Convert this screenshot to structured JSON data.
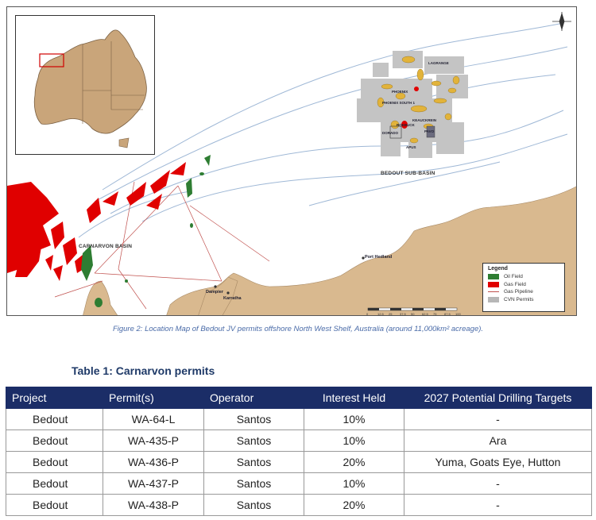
{
  "map": {
    "basin_labels": {
      "bedout": "BEDOUT SUB-BASIN",
      "carnarvon": "CARNARVON BASIN"
    },
    "towns": [
      "Port Hedland",
      "Dampier",
      "Karratha"
    ],
    "field_labels": [
      "LAGRANGE",
      "PHOENIX",
      "PHOENIX SOUTH 1",
      "ROEBUCK",
      "KEAUCKREIN",
      "DORADO",
      "PAVO",
      "APUS"
    ],
    "legend": {
      "title": "Legend",
      "items": [
        {
          "label": "Oil Field",
          "color": "#2e7d32"
        },
        {
          "label": "Gas Field",
          "color": "#e00000"
        },
        {
          "label": "Gas Pipeline",
          "color": "#c0504d"
        },
        {
          "label": "CVN Permits",
          "color": "#b7b7b7"
        }
      ]
    },
    "scale_ticks": [
      "0",
      "12.5",
      "25",
      "37.5",
      "50",
      "62.5",
      "75",
      "87.5",
      "100"
    ],
    "colors": {
      "land": "#d9b98f",
      "permits": "#c4c4c4",
      "oil_field": "#2e7d32",
      "gas_field": "#e00000",
      "pipeline": "#c0504d",
      "bathymetry": "#9fb8d6"
    }
  },
  "caption": "Figure 2: Location Map of Bedout JV permits offshore North West Shelf, Australia (around 11,000km² acreage).",
  "table": {
    "title": "Table 1: Carnarvon permits",
    "headers": [
      "Project",
      "Permit(s)",
      "Operator",
      "Interest Held",
      "2027 Potential Drilling Targets"
    ],
    "rows": [
      [
        "Bedout",
        "WA-64-L",
        "Santos",
        "10%",
        "-"
      ],
      [
        "Bedout",
        "WA-435-P",
        "Santos",
        "10%",
        "Ara"
      ],
      [
        "Bedout",
        "WA-436-P",
        "Santos",
        "20%",
        "Yuma, Goats Eye, Hutton"
      ],
      [
        "Bedout",
        "WA-437-P",
        "Santos",
        "10%",
        "-"
      ],
      [
        "Bedout",
        "WA-438-P",
        "Santos",
        "20%",
        "-"
      ]
    ]
  }
}
